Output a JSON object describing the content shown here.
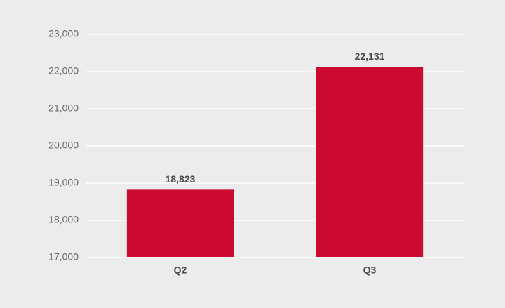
{
  "chart_data": {
    "type": "bar",
    "categories": [
      "Q2",
      "Q3"
    ],
    "values": [
      18823,
      22131
    ],
    "value_labels": [
      "18,823",
      "22,131"
    ],
    "color": "#cc0a2f",
    "ylim": [
      17000,
      23000
    ],
    "yticks": [
      {
        "value": 17000,
        "label": "17,000"
      },
      {
        "value": 18000,
        "label": "18,000"
      },
      {
        "value": 19000,
        "label": "19,000"
      },
      {
        "value": 20000,
        "label": "20,000"
      },
      {
        "value": 21000,
        "label": "21,000"
      },
      {
        "value": 22000,
        "label": "22,000"
      },
      {
        "value": 23000,
        "label": "23,000"
      }
    ],
    "grid": true
  }
}
